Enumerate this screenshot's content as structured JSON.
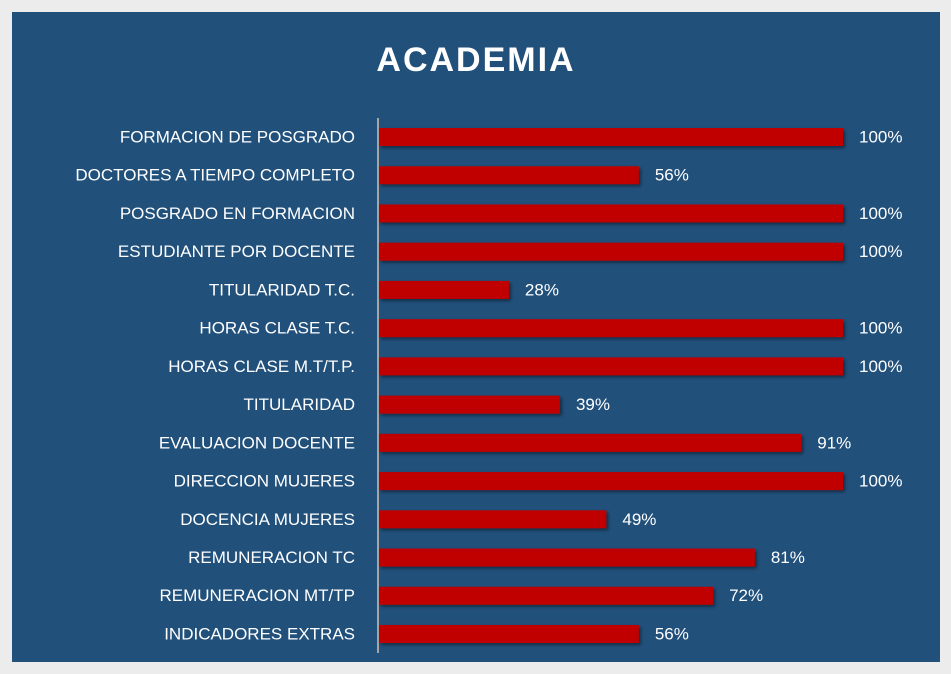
{
  "chart_data": {
    "type": "bar",
    "orientation": "horizontal",
    "title": "ACADEMIA",
    "categories": [
      "FORMACION DE POSGRADO",
      "DOCTORES A TIEMPO COMPLETO",
      "POSGRADO EN FORMACION",
      "ESTUDIANTE POR DOCENTE",
      "TITULARIDAD T.C.",
      "HORAS CLASE T.C.",
      "HORAS CLASE M.T/T.P.",
      "TITULARIDAD",
      "EVALUACION DOCENTE",
      "DIRECCION MUJERES",
      "DOCENCIA MUJERES",
      "REMUNERACION TC",
      "REMUNERACION MT/TP",
      "INDICADORES EXTRAS"
    ],
    "values": [
      100,
      56,
      100,
      100,
      28,
      100,
      100,
      39,
      91,
      100,
      49,
      81,
      72,
      56
    ],
    "value_labels": [
      "100%",
      "56%",
      "100%",
      "100%",
      "28%",
      "100%",
      "100%",
      "39%",
      "91%",
      "100%",
      "49%",
      "81%",
      "72%",
      "56%"
    ],
    "color": "#c00000",
    "xlim": [
      0,
      100
    ]
  }
}
